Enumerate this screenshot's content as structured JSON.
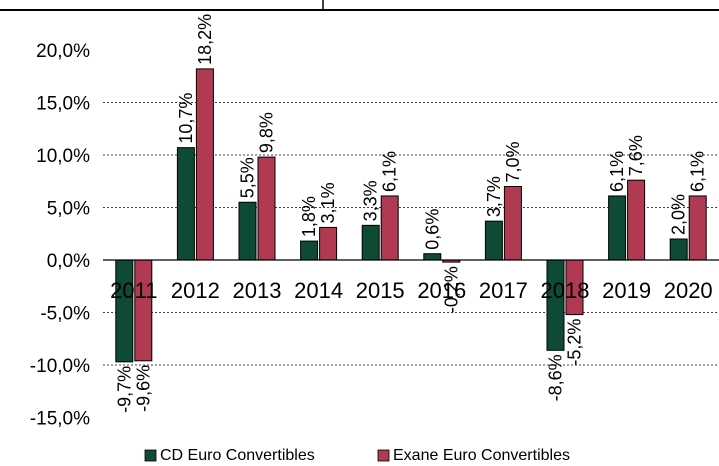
{
  "chart_data": {
    "type": "bar",
    "categories": [
      "2011",
      "2012",
      "2013",
      "2014",
      "2015",
      "2016",
      "2017",
      "2018",
      "2019",
      "2020"
    ],
    "series": [
      {
        "name": "CD Euro Convertibles",
        "values": [
          -9.7,
          10.7,
          5.5,
          1.8,
          3.3,
          0.6,
          3.7,
          -8.6,
          6.1,
          2.0
        ],
        "labels": [
          "-9,7%",
          "10,7%",
          "5,5%",
          "1,8%",
          "3,3%",
          "0,6%",
          "3,7%",
          "-8,6%",
          "6,1%",
          "2,0%"
        ],
        "color": "#0e4a34"
      },
      {
        "name": "Exane Euro Convertibles",
        "values": [
          -9.6,
          18.2,
          9.8,
          3.1,
          6.1,
          -0.2,
          7.0,
          -5.2,
          7.6,
          6.1
        ],
        "labels": [
          "-9,6%",
          "18,2%",
          "9,8%",
          "3,1%",
          "6,1%",
          "-0,2%",
          "7,0%",
          "-5,2%",
          "7,6%",
          "6,1%"
        ],
        "color": "#b03a52"
      }
    ],
    "y_ticks": [
      20,
      15,
      10,
      5,
      0,
      -5,
      -10,
      -15
    ],
    "y_tick_labels": [
      "20,0%",
      "15,0%",
      "10,0%",
      "5,0%",
      "0,0%",
      "-5,0%",
      "-10,0%",
      "-15,0%"
    ],
    "ylim": [
      -15,
      20
    ],
    "grid": "horizontal dashed",
    "legend_position": "bottom"
  }
}
